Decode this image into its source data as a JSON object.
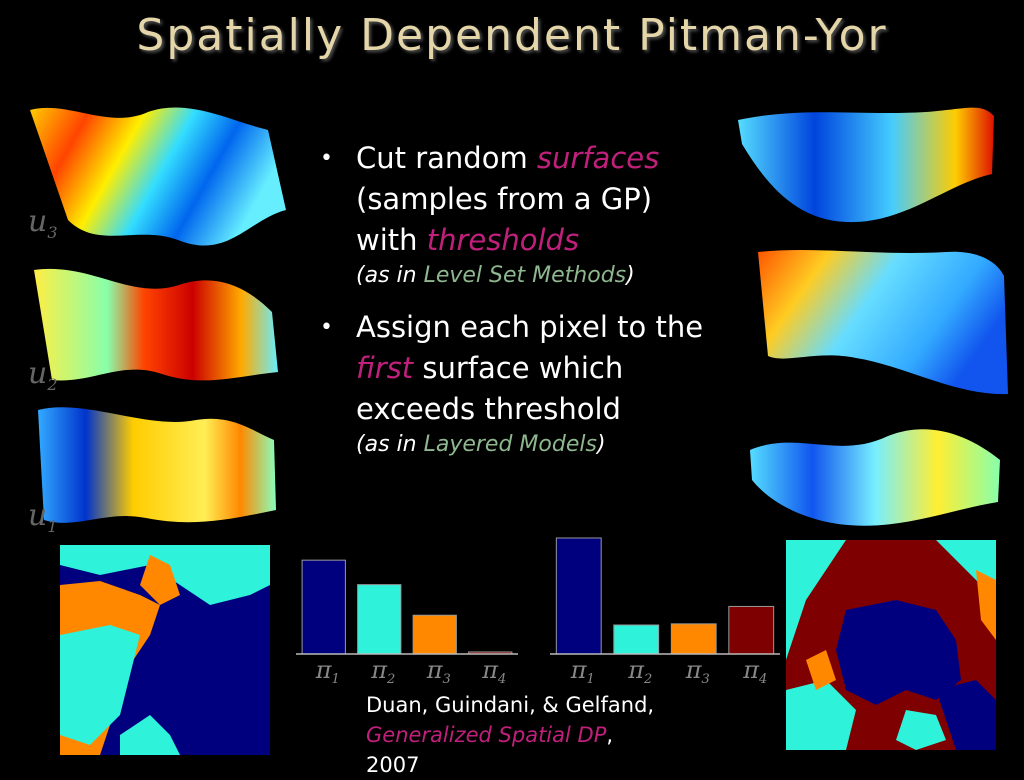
{
  "title": "Spatially Dependent Pitman-Yor",
  "bullets": [
    {
      "pre": "Cut random ",
      "em1": "surfaces",
      "mid": " (samples from a GP) with ",
      "em2": "thresholds",
      "post": "",
      "note_pre": "(as in ",
      "note_em": "Level Set Methods",
      "note_post": ")"
    },
    {
      "pre": "Assign each pixel to the ",
      "em1": "first",
      "mid": " surface which exceeds threshold",
      "em2": "",
      "post": "",
      "note_pre": "(as in ",
      "note_em": "Layered Models",
      "note_post": ")"
    }
  ],
  "bullet_symbol": "•",
  "surface_labels": [
    {
      "var": "u",
      "sub": "3"
    },
    {
      "var": "u",
      "sub": "2"
    },
    {
      "var": "u",
      "sub": "1"
    }
  ],
  "citation": {
    "authors": "Duan, Guindani, & Gelfand,",
    "title": "Generalized Spatial DP",
    "year": "2007"
  },
  "colors": {
    "dark_blue": "#00007f",
    "cyan": "#2ef2d9",
    "orange": "#ff8800",
    "dark_red": "#7f0000"
  },
  "chart_data": [
    {
      "type": "bar",
      "categories": [
        "π1",
        "π2",
        "π3",
        "π4"
      ],
      "values": [
        0.92,
        0.68,
        0.38,
        0.02
      ],
      "colors": [
        "#00007f",
        "#2ef2d9",
        "#ff8800",
        "#7f0000"
      ]
    },
    {
      "type": "bar",
      "categories": [
        "π1",
        "π2",
        "π3",
        "π4"
      ],
      "values": [
        1.0,
        0.25,
        0.26,
        0.41
      ],
      "colors": [
        "#00007f",
        "#2ef2d9",
        "#ff8800",
        "#7f0000"
      ]
    }
  ],
  "bar_label_var": "π",
  "bar_label_subs": [
    "1",
    "2",
    "3",
    "4"
  ]
}
